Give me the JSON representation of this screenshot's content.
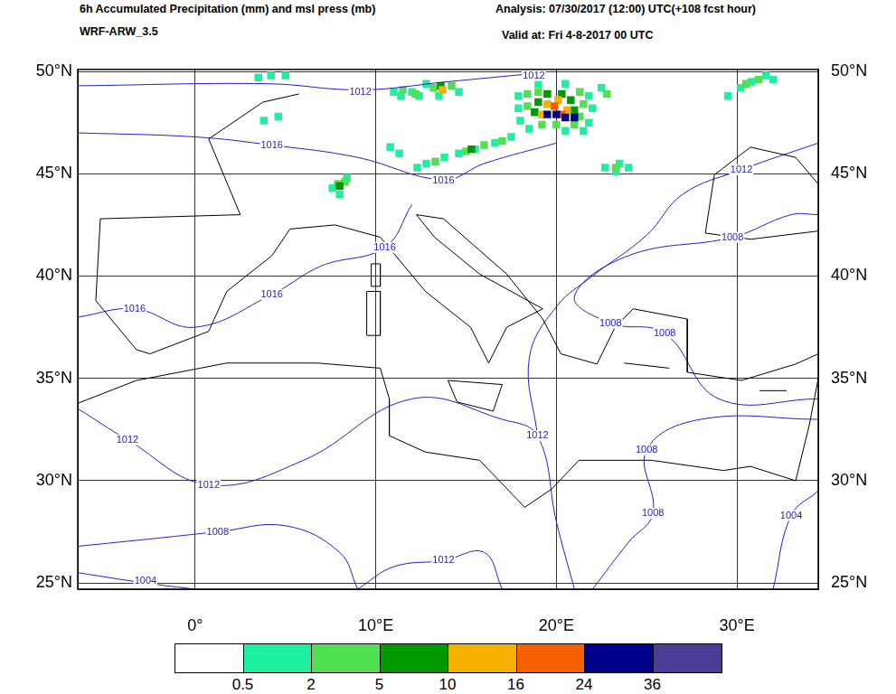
{
  "chart_data": {
    "type": "map",
    "title": "6h Accumulated Precipitation (mm) and msl press (mb)",
    "subtitle": "WRF-ARW_3.5",
    "annotations": [
      "Analysis: 07/30/2017 (12:00) UTC(+108 fcst hour)",
      "Valid at: Fri 4-8-2017 00 UTC"
    ],
    "xlim": [
      -6.5,
      34.5
    ],
    "xticks": [
      {
        "value": 0,
        "label": "0°"
      },
      {
        "value": 10,
        "label": "10°E"
      },
      {
        "value": 20,
        "label": "20°E"
      },
      {
        "value": 30,
        "label": "30°E"
      }
    ],
    "ylim": [
      24.7,
      50.1
    ],
    "yticks": [
      {
        "value": 25,
        "label": "25°N"
      },
      {
        "value": 30,
        "label": "30°N"
      },
      {
        "value": 35,
        "label": "35°N"
      },
      {
        "value": 40,
        "label": "40°N"
      },
      {
        "value": 45,
        "label": "45°N"
      },
      {
        "value": 50,
        "label": "50°N"
      }
    ],
    "grid": true,
    "coastlines": [
      [
        [
          5.75,
          48.9
        ],
        [
          3.75,
          48.5
        ],
        [
          0.75,
          46.7
        ],
        [
          2.5,
          43.0
        ],
        [
          -5.25,
          42.8
        ],
        [
          -5.5,
          38.8
        ],
        [
          -3.25,
          36.4
        ],
        [
          -2.5,
          36.2
        ],
        [
          0.75,
          37.3
        ],
        [
          1.75,
          39.25
        ],
        [
          4.25,
          41.0
        ],
        [
          5.25,
          42.3
        ],
        [
          7.75,
          42.5
        ],
        [
          10.25,
          41.9
        ],
        [
          12.75,
          39.25
        ],
        [
          15.25,
          37.5
        ],
        [
          16.25,
          35.75
        ],
        [
          17.25,
          37.5
        ],
        [
          19.25,
          38.4
        ],
        [
          15.75,
          40.1
        ],
        [
          13.25,
          41.9
        ],
        [
          12.25,
          43.0
        ],
        [
          13.75,
          42.8
        ],
        [
          17.25,
          40.1
        ],
        [
          19.25,
          37.9
        ],
        [
          20.25,
          36.2
        ],
        [
          22.25,
          35.7
        ],
        [
          23.25,
          37.5
        ],
        [
          24.25,
          38.4
        ],
        [
          27.25,
          37.9
        ],
        [
          27.25,
          35.3
        ],
        [
          30.25,
          34.9
        ],
        [
          33.25,
          35.7
        ],
        [
          34.5,
          36.2
        ]
      ],
      [
        [
          -6.45,
          33.8
        ],
        [
          -3.25,
          34.9
        ],
        [
          1.75,
          35.75
        ],
        [
          6.75,
          35.75
        ],
        [
          10.25,
          35.5
        ],
        [
          10.75,
          34.0
        ],
        [
          10.75,
          32.2
        ],
        [
          12.75,
          31.4
        ],
        [
          15.75,
          31.0
        ],
        [
          18.25,
          28.7
        ],
        [
          19.75,
          29.6
        ],
        [
          21.25,
          31.0
        ],
        [
          25.25,
          31.0
        ],
        [
          29.25,
          30.5
        ],
        [
          30.75,
          30.7
        ],
        [
          33.25,
          30.0
        ],
        [
          34.0,
          32.7
        ],
        [
          34.5,
          35.0
        ]
      ],
      [
        [
          14.0,
          34.9
        ],
        [
          17.0,
          34.7
        ],
        [
          16.5,
          33.4
        ],
        [
          14.5,
          33.85
        ],
        [
          14.0,
          34.9
        ]
      ],
      [
        [
          9.5,
          39.25
        ],
        [
          10.25,
          39.25
        ],
        [
          10.25,
          37.1
        ],
        [
          9.5,
          37.1
        ],
        [
          9.5,
          39.25
        ]
      ],
      [
        [
          9.75,
          40.6
        ],
        [
          10.25,
          40.6
        ],
        [
          10.25,
          39.5
        ],
        [
          9.75,
          39.5
        ],
        [
          9.75,
          40.6
        ]
      ],
      [
        [
          23.75,
          35.75
        ],
        [
          26.25,
          35.5
        ]
      ],
      [
        [
          31.25,
          34.4
        ],
        [
          32.75,
          34.4
        ]
      ],
      [
        [
          34.5,
          44.5
        ],
        [
          33.25,
          45.8
        ],
        [
          30.75,
          46.3
        ],
        [
          28.75,
          44.95
        ],
        [
          28.25,
          42.1
        ],
        [
          30.75,
          41.8
        ],
        [
          34.5,
          42.2
        ]
      ]
    ],
    "isobars": [
      {
        "value": 1012,
        "points": [
          [
            -6.45,
            49.3
          ],
          [
            4,
            49.4
          ],
          [
            9.15,
            49.1
          ],
          [
            14,
            49.5
          ],
          [
            18.75,
            49.9
          ]
        ]
      },
      {
        "value": 1016,
        "points": [
          [
            -6.45,
            47.0
          ],
          [
            0,
            46.8
          ],
          [
            4.25,
            46.4
          ],
          [
            9,
            45.8
          ],
          [
            13.75,
            44.7
          ],
          [
            16,
            45.5
          ],
          [
            20,
            46.5
          ]
        ]
      },
      {
        "value": 1016,
        "points": [
          [
            -6.45,
            38.0
          ],
          [
            -3.35,
            38.4
          ],
          [
            0,
            37.5
          ],
          [
            4.25,
            39.1
          ],
          [
            7,
            40.5
          ],
          [
            10.5,
            41.4
          ],
          [
            12,
            43.5
          ]
        ]
      },
      {
        "value": 1012,
        "points": [
          [
            -6.45,
            33.5
          ],
          [
            -3.75,
            32.0
          ],
          [
            0.75,
            29.8
          ],
          [
            6,
            31
          ],
          [
            12,
            34
          ],
          [
            17,
            33
          ],
          [
            18.95,
            32.2
          ],
          [
            20,
            28
          ],
          [
            21,
            24.7
          ]
        ]
      },
      {
        "value": 1008,
        "points": [
          [
            -6.45,
            26.8
          ],
          [
            -2,
            27.2
          ],
          [
            1.25,
            27.5
          ],
          [
            5,
            27.8
          ],
          [
            8,
            26.5
          ],
          [
            9,
            24.7
          ]
        ]
      },
      {
        "value": 1004,
        "points": [
          [
            -6.45,
            25.5
          ],
          [
            -2.75,
            25.0
          ],
          [
            0,
            24.7
          ]
        ]
      },
      {
        "value": 1012,
        "points": [
          [
            9,
            24.7
          ],
          [
            11,
            25.8
          ],
          [
            13.75,
            26.1
          ],
          [
            16,
            26.5
          ],
          [
            17,
            24.7
          ]
        ]
      },
      {
        "value": 1008,
        "points": [
          [
            34.5,
            34
          ],
          [
            29,
            34
          ],
          [
            26,
            37.2
          ],
          [
            23,
            37.7
          ],
          [
            21,
            39
          ],
          [
            24,
            41
          ],
          [
            29.75,
            41.9
          ],
          [
            33,
            43
          ],
          [
            34.5,
            43
          ]
        ]
      },
      {
        "value": 1008,
        "points": [
          [
            22,
            24.7
          ],
          [
            24,
            27
          ],
          [
            25.35,
            28.4
          ],
          [
            25,
            31.5
          ],
          [
            28,
            33
          ],
          [
            34.5,
            33
          ]
        ]
      },
      {
        "value": 1012,
        "points": [
          [
            34.5,
            46.5
          ],
          [
            30.25,
            45.2
          ],
          [
            27,
            44
          ],
          [
            25,
            42
          ],
          [
            22,
            40
          ],
          [
            20,
            38.5
          ],
          [
            18.5,
            36
          ],
          [
            18.95,
            32.2
          ]
        ]
      },
      {
        "value": 1004,
        "points": [
          [
            34.5,
            29.5
          ],
          [
            33,
            28.3
          ],
          [
            32,
            24.7
          ]
        ]
      }
    ],
    "isobar_labels": [
      {
        "value": 1012,
        "x": 9.15,
        "y": 49.0
      },
      {
        "value": 1012,
        "x": 18.75,
        "y": 49.8
      },
      {
        "value": 1016,
        "x": 4.25,
        "y": 46.4
      },
      {
        "value": 1016,
        "x": 13.75,
        "y": 44.65
      },
      {
        "value": 1016,
        "x": 4.25,
        "y": 39.1
      },
      {
        "value": 1016,
        "x": -3.35,
        "y": 38.4
      },
      {
        "value": 1016,
        "x": 10.5,
        "y": 41.4
      },
      {
        "value": 1012,
        "x": 30.25,
        "y": 45.2
      },
      {
        "value": 1008,
        "x": 29.75,
        "y": 41.9
      },
      {
        "value": 1008,
        "x": 26.0,
        "y": 37.2
      },
      {
        "value": 1008,
        "x": 23.0,
        "y": 37.7
      },
      {
        "value": 1012,
        "x": -3.75,
        "y": 32.0
      },
      {
        "value": 1012,
        "x": 0.75,
        "y": 29.8
      },
      {
        "value": 1012,
        "x": 18.95,
        "y": 32.2
      },
      {
        "value": 1008,
        "x": 25.0,
        "y": 31.5
      },
      {
        "value": 1008,
        "x": 25.35,
        "y": 28.4
      },
      {
        "value": 1012,
        "x": 13.75,
        "y": 26.1
      },
      {
        "value": 1008,
        "x": 1.25,
        "y": 27.5
      },
      {
        "value": 1004,
        "x": -2.75,
        "y": 25.1
      },
      {
        "value": 1004,
        "x": 33.0,
        "y": 28.3
      }
    ],
    "precipitation": [
      {
        "x": 17.9,
        "y": 48.8,
        "value": 1
      },
      {
        "x": 17.9,
        "y": 48.2,
        "value": 1
      },
      {
        "x": 18.0,
        "y": 47.6,
        "value": 1
      },
      {
        "x": 21.8,
        "y": 48.8,
        "value": 1
      },
      {
        "x": 22.0,
        "y": 48.2,
        "value": 1
      },
      {
        "x": 21.8,
        "y": 47.5,
        "value": 1
      },
      {
        "x": 19.0,
        "y": 49.4,
        "value": 1
      },
      {
        "x": 20.5,
        "y": 49.4,
        "value": 1
      },
      {
        "x": 18.5,
        "y": 47.2,
        "value": 1
      },
      {
        "x": 20.5,
        "y": 47.1,
        "value": 1
      },
      {
        "x": 21.5,
        "y": 47.1,
        "value": 1
      },
      {
        "x": 18.4,
        "y": 48.9,
        "value": 3
      },
      {
        "x": 18.4,
        "y": 48.3,
        "value": 3
      },
      {
        "x": 19.0,
        "y": 49.0,
        "value": 3
      },
      {
        "x": 21.3,
        "y": 49.0,
        "value": 3
      },
      {
        "x": 21.5,
        "y": 48.4,
        "value": 3
      },
      {
        "x": 21.3,
        "y": 47.8,
        "value": 3
      },
      {
        "x": 19.2,
        "y": 47.4,
        "value": 3
      },
      {
        "x": 20.0,
        "y": 47.4,
        "value": 3
      },
      {
        "x": 21.0,
        "y": 47.4,
        "value": 3
      },
      {
        "x": 19.0,
        "y": 48.5,
        "value": 7
      },
      {
        "x": 19.5,
        "y": 48.9,
        "value": 7
      },
      {
        "x": 20.3,
        "y": 48.9,
        "value": 7
      },
      {
        "x": 20.8,
        "y": 48.6,
        "value": 7
      },
      {
        "x": 21.0,
        "y": 48.1,
        "value": 7
      },
      {
        "x": 18.8,
        "y": 48.0,
        "value": 7
      },
      {
        "x": 19.5,
        "y": 48.4,
        "value": 12
      },
      {
        "x": 20.1,
        "y": 48.6,
        "value": 12
      },
      {
        "x": 20.6,
        "y": 48.1,
        "value": 12
      },
      {
        "x": 19.2,
        "y": 47.9,
        "value": 12
      },
      {
        "x": 19.9,
        "y": 48.3,
        "value": 20
      },
      {
        "x": 20.3,
        "y": 47.9,
        "value": 20
      },
      {
        "x": 19.5,
        "y": 47.9,
        "value": 30
      },
      {
        "x": 20.0,
        "y": 47.9,
        "value": 30
      },
      {
        "x": 20.5,
        "y": 47.75,
        "value": 30
      },
      {
        "x": 21.0,
        "y": 47.75,
        "value": 30
      },
      {
        "x": 12.8,
        "y": 49.4,
        "value": 1
      },
      {
        "x": 14.6,
        "y": 49.0,
        "value": 1
      },
      {
        "x": 13.5,
        "y": 48.8,
        "value": 1
      },
      {
        "x": 13.2,
        "y": 49.2,
        "value": 3
      },
      {
        "x": 14.2,
        "y": 49.3,
        "value": 3
      },
      {
        "x": 13.6,
        "y": 49.3,
        "value": 7
      },
      {
        "x": 13.7,
        "y": 49.1,
        "value": 12
      },
      {
        "x": 11.0,
        "y": 49.0,
        "value": 1
      },
      {
        "x": 11.4,
        "y": 48.8,
        "value": 1
      },
      {
        "x": 12.0,
        "y": 49.0,
        "value": 1
      },
      {
        "x": 12.4,
        "y": 48.8,
        "value": 1
      },
      {
        "x": 11.5,
        "y": 49.1,
        "value": 3
      },
      {
        "x": 12.2,
        "y": 48.9,
        "value": 3
      },
      {
        "x": 12.3,
        "y": 45.3,
        "value": 1
      },
      {
        "x": 12.8,
        "y": 45.5,
        "value": 1
      },
      {
        "x": 13.8,
        "y": 45.8,
        "value": 1
      },
      {
        "x": 14.6,
        "y": 46.0,
        "value": 1
      },
      {
        "x": 15.5,
        "y": 46.2,
        "value": 1
      },
      {
        "x": 16.6,
        "y": 46.5,
        "value": 1
      },
      {
        "x": 17.5,
        "y": 46.8,
        "value": 1
      },
      {
        "x": 13.3,
        "y": 45.6,
        "value": 3
      },
      {
        "x": 15.0,
        "y": 46.1,
        "value": 3
      },
      {
        "x": 16.0,
        "y": 46.4,
        "value": 3
      },
      {
        "x": 17.0,
        "y": 46.6,
        "value": 3
      },
      {
        "x": 15.3,
        "y": 46.2,
        "value": 7
      },
      {
        "x": 11.3,
        "y": 46.0,
        "value": 1
      },
      {
        "x": 10.8,
        "y": 46.3,
        "value": 1
      },
      {
        "x": 7.6,
        "y": 44.3,
        "value": 1
      },
      {
        "x": 8.4,
        "y": 44.8,
        "value": 1
      },
      {
        "x": 8.0,
        "y": 44.0,
        "value": 1
      },
      {
        "x": 7.9,
        "y": 44.5,
        "value": 3
      },
      {
        "x": 8.3,
        "y": 44.6,
        "value": 3
      },
      {
        "x": 8.0,
        "y": 44.4,
        "value": 7
      },
      {
        "x": 22.7,
        "y": 45.3,
        "value": 1
      },
      {
        "x": 23.3,
        "y": 45.1,
        "value": 1
      },
      {
        "x": 24.0,
        "y": 45.3,
        "value": 1
      },
      {
        "x": 23.5,
        "y": 45.5,
        "value": 1
      },
      {
        "x": 23.3,
        "y": 45.3,
        "value": 3
      },
      {
        "x": 29.5,
        "y": 48.8,
        "value": 1
      },
      {
        "x": 30.2,
        "y": 49.2,
        "value": 1
      },
      {
        "x": 30.8,
        "y": 49.5,
        "value": 1
      },
      {
        "x": 31.6,
        "y": 49.8,
        "value": 1
      },
      {
        "x": 32.0,
        "y": 49.6,
        "value": 1
      },
      {
        "x": 30.5,
        "y": 49.4,
        "value": 3
      },
      {
        "x": 31.2,
        "y": 49.6,
        "value": 3
      },
      {
        "x": 22.5,
        "y": 49.2,
        "value": 1
      },
      {
        "x": 22.8,
        "y": 48.9,
        "value": 3
      },
      {
        "x": 3.5,
        "y": 49.7,
        "value": 1
      },
      {
        "x": 4.2,
        "y": 49.8,
        "value": 1
      },
      {
        "x": 5.0,
        "y": 49.8,
        "value": 1
      },
      {
        "x": 3.8,
        "y": 47.6,
        "value": 1
      },
      {
        "x": 4.6,
        "y": 47.8,
        "value": 1
      }
    ],
    "colorbar": {
      "levels": [
        0.5,
        2,
        5,
        10,
        16,
        24,
        36
      ],
      "colors": [
        "#ffffff",
        "#1ff0a0",
        "#50e050",
        "#009900",
        "#f5b000",
        "#f56000",
        "#00008c",
        "#4b3c96"
      ]
    }
  }
}
